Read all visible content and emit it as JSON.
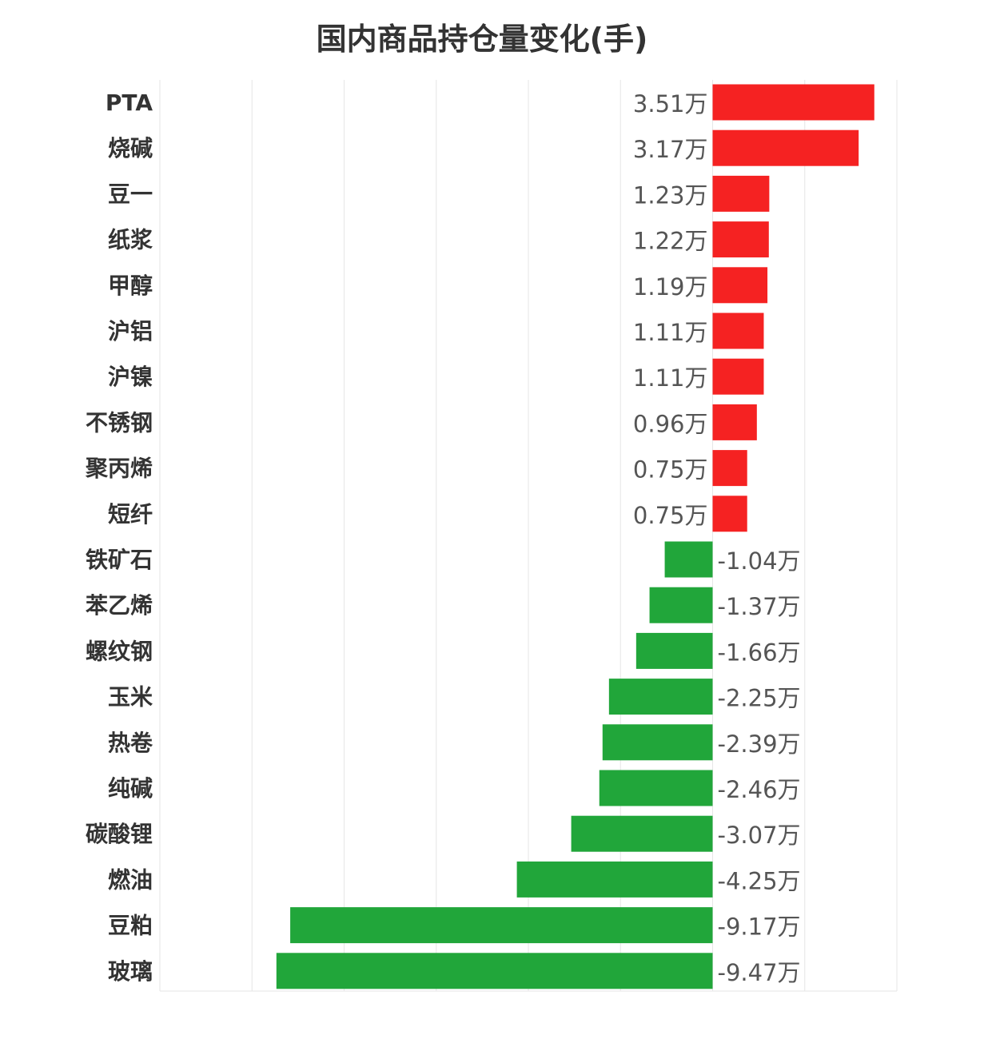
{
  "chart_data": {
    "type": "bar",
    "orientation": "horizontal",
    "title": "国内商品持仓量变化(手)",
    "xlabel": "",
    "ylabel": "",
    "unit_suffix": "万",
    "xlim": [
      -12,
      4
    ],
    "grid": true,
    "colors": {
      "positive": "#f52222",
      "negative": "#21a63a",
      "grid": "#e6e6e6",
      "text": "#333333",
      "value_text": "#555555"
    },
    "categories": [
      "PTA",
      "烧碱",
      "豆一",
      "纸浆",
      "甲醇",
      "沪铝",
      "沪镍",
      "不锈钢",
      "聚丙烯",
      "短纤",
      "铁矿石",
      "苯乙烯",
      "螺纹钢",
      "玉米",
      "热卷",
      "纯碱",
      "碳酸锂",
      "燃油",
      "豆粕",
      "玻璃"
    ],
    "values": [
      3.51,
      3.17,
      1.23,
      1.22,
      1.19,
      1.11,
      1.11,
      0.96,
      0.75,
      0.75,
      -1.04,
      -1.37,
      -1.66,
      -2.25,
      -2.39,
      -2.46,
      -3.07,
      -4.25,
      -9.17,
      -9.47
    ],
    "value_labels": [
      "3.51万",
      "3.17万",
      "1.23万",
      "1.22万",
      "1.19万",
      "1.11万",
      "1.11万",
      "0.96万",
      "0.75万",
      "0.75万",
      "-1.04万",
      "-1.37万",
      "-1.66万",
      "-2.25万",
      "-2.39万",
      "-2.46万",
      "-3.07万",
      "-4.25万",
      "-9.17万",
      "-9.47万"
    ]
  }
}
